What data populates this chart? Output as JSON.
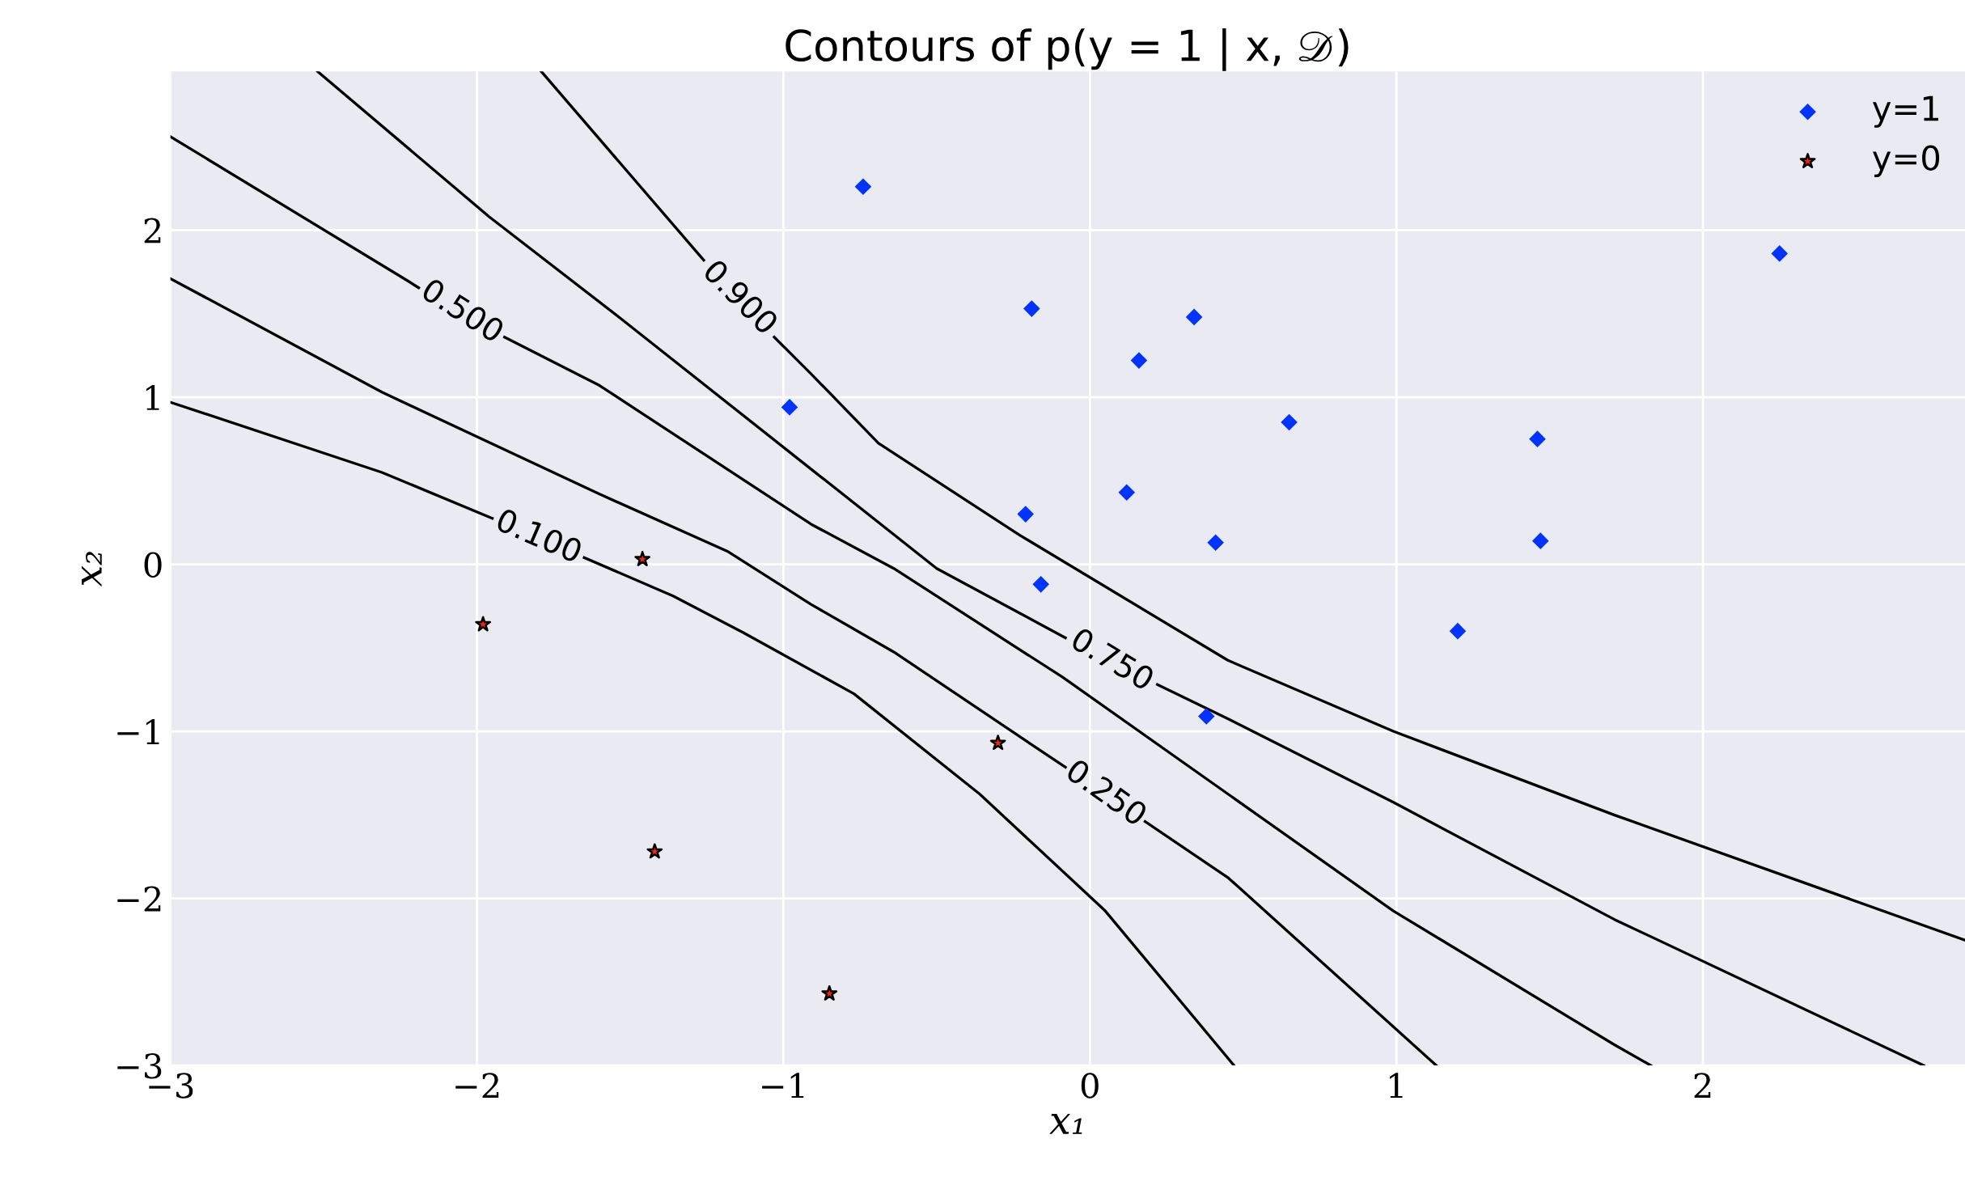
{
  "chart_data": {
    "type": "scatter",
    "title": "Contours of p(y = 1 | x, 𝒟)",
    "xlabel": "x₁",
    "ylabel": "x₂",
    "xlim": [
      -3,
      2.855
    ],
    "ylim": [
      -3,
      2.95
    ],
    "xticks": [
      -3,
      -2,
      -1,
      0,
      1,
      2
    ],
    "yticks": [
      -3,
      -2,
      -1,
      0,
      1,
      2
    ],
    "grid": true,
    "legend": "top right",
    "series": [
      {
        "name": "y=1",
        "marker": "diamond",
        "color": "#0033ff",
        "x": [
          -0.74,
          -0.19,
          0.34,
          0.16,
          -0.98,
          0.65,
          1.46,
          0.12,
          -0.21,
          0.41,
          1.47,
          -0.16,
          1.2,
          0.38,
          2.25
        ],
        "values": [
          2.26,
          1.53,
          1.48,
          1.22,
          0.94,
          0.85,
          0.75,
          0.43,
          0.3,
          0.13,
          0.14,
          -0.12,
          -0.4,
          -0.91,
          1.86
        ]
      },
      {
        "name": "y=0",
        "marker": "star",
        "color": "#ff2200",
        "x": [
          -1.46,
          -1.98,
          -0.3,
          -1.42,
          -0.85
        ],
        "values": [
          0.03,
          -0.36,
          -1.07,
          -1.72,
          -2.57
        ]
      },
      {
        "type": "line",
        "color": "#000000",
        "x": [
          -3,
          -2.31,
          -1.95,
          -1.8,
          -1.65,
          -1.36,
          -1.13,
          -0.77,
          -0.36,
          0.05,
          0.47
        ],
        "values": [
          0.97,
          0.55,
          0.275,
          null,
          0.04,
          -0.19,
          -0.41,
          -0.775,
          -1.375,
          -2.075,
          -3.0
        ]
      },
      {
        "type": "line",
        "color": "#000000",
        "x": [
          -3,
          -2.31,
          -1.6,
          -1.18,
          -0.91,
          -0.64,
          -0.08,
          0.05,
          0.18,
          0.45,
          1.13
        ],
        "values": [
          1.71,
          1.03,
          0.42,
          0.075,
          -0.24,
          -0.525,
          -1.215,
          null,
          -1.54,
          -1.875,
          -3.0
        ]
      },
      {
        "type": "line",
        "color": "#000000",
        "x": [
          -3,
          -2.22,
          -2.19,
          -2.05,
          -1.91,
          -1.6,
          -0.91,
          -0.64,
          -0.09,
          0.45,
          0.99,
          1.71,
          1.83
        ],
        "values": [
          2.56,
          1.69,
          1.655,
          null,
          1.36,
          1.07,
          0.24,
          -0.025,
          -0.675,
          -1.375,
          -2.075,
          -2.875,
          -3.0
        ]
      },
      {
        "type": "line",
        "color": "#000000",
        "x": [
          -2.52,
          -1.96,
          -1.53,
          -0.91,
          -0.5,
          -0.08,
          0.07,
          0.22,
          0.45,
          0.99,
          1.71,
          2.72
        ],
        "values": [
          2.95,
          2.08,
          1.47,
          0.57,
          -0.025,
          -0.44,
          null,
          -0.72,
          -0.925,
          -1.425,
          -2.125,
          -3.0
        ]
      },
      {
        "type": "line",
        "color": "#000000",
        "x": [
          -1.79,
          -1.26,
          -1.13,
          -1.03,
          -0.91,
          -0.69,
          -0.23,
          0.45,
          0.99,
          1.71,
          2.855
        ],
        "values": [
          2.95,
          1.82,
          null,
          1.36,
          1.14,
          0.725,
          0.175,
          -0.575,
          -1.0,
          -1.5,
          -2.25
        ]
      }
    ],
    "annotations": [
      "0.100",
      "0.250",
      "0.500",
      "0.750",
      "0.900"
    ]
  }
}
